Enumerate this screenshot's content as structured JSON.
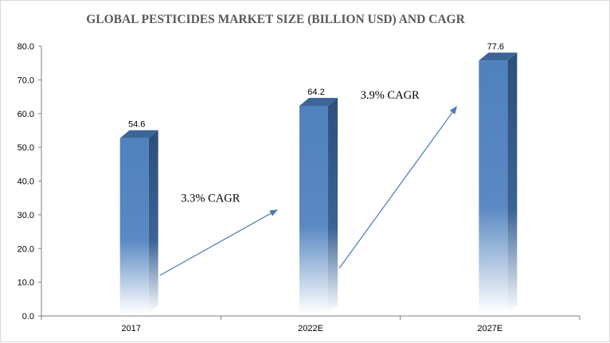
{
  "chart_data": {
    "type": "bar",
    "title": "GLOBAL PESTICIDES MARKET SIZE (BILLION USD) AND CAGR",
    "xlabel": "",
    "ylabel": "",
    "categories": [
      "2017",
      "2022E",
      "2027E"
    ],
    "values": [
      54.6,
      64.2,
      77.6
    ],
    "data_labels": [
      "54.6",
      "64.2",
      "77.6"
    ],
    "ylim": [
      0,
      80
    ],
    "yticks": [
      "0.0",
      "10.0",
      "20.0",
      "30.0",
      "40.0",
      "50.0",
      "60.0",
      "70.0",
      "80.0"
    ],
    "bar_color": "#4f81bd",
    "annotations": [
      {
        "text": "3.3% CAGR",
        "from": "2017",
        "to": "2022E"
      },
      {
        "text": "3.9% CAGR",
        "from": "2022E",
        "to": "2027E"
      }
    ]
  }
}
